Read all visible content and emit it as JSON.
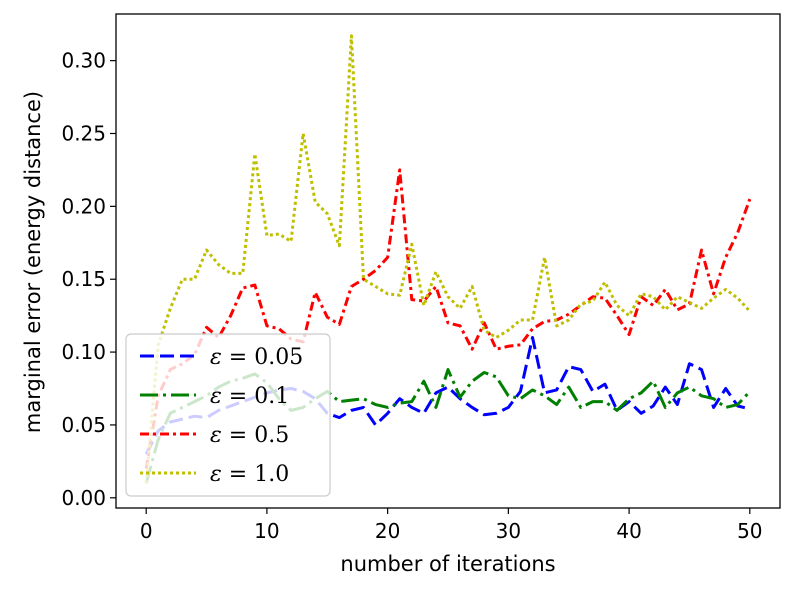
{
  "chart_data": {
    "type": "line",
    "title": "",
    "xlabel": "number of iterations",
    "ylabel": "marginal error (energy distance)",
    "xlim": [
      -2.5,
      52.5
    ],
    "ylim": [
      -0.007,
      0.332
    ],
    "xticks": [
      0,
      10,
      20,
      30,
      40,
      50
    ],
    "yticks": [
      0.0,
      0.05,
      0.1,
      0.15,
      0.2,
      0.25,
      0.3
    ],
    "ytick_labels": [
      "0.00",
      "0.05",
      "0.10",
      "0.15",
      "0.20",
      "0.25",
      "0.30"
    ],
    "legend_position": "lower-left",
    "x": [
      0,
      1,
      2,
      3,
      4,
      5,
      6,
      7,
      8,
      9,
      10,
      11,
      12,
      13,
      14,
      15,
      16,
      17,
      18,
      19,
      20,
      21,
      22,
      23,
      24,
      25,
      26,
      27,
      28,
      29,
      30,
      31,
      32,
      33,
      34,
      35,
      36,
      37,
      38,
      39,
      40,
      41,
      42,
      43,
      44,
      45,
      46,
      47,
      48,
      49,
      50
    ],
    "series": [
      {
        "name": "ε = 0.05",
        "label_prefix": "ε = ",
        "label_value": "0.05",
        "color": "#0000ff",
        "dash": "14,6",
        "values": [
          0.03,
          0.046,
          0.052,
          0.054,
          0.056,
          0.055,
          0.06,
          0.063,
          0.066,
          0.069,
          0.072,
          0.074,
          0.075,
          0.073,
          0.068,
          0.058,
          0.055,
          0.06,
          0.062,
          0.05,
          0.058,
          0.068,
          0.062,
          0.058,
          0.072,
          0.076,
          0.068,
          0.062,
          0.057,
          0.058,
          0.062,
          0.073,
          0.11,
          0.072,
          0.074,
          0.09,
          0.088,
          0.073,
          0.078,
          0.06,
          0.066,
          0.058,
          0.063,
          0.076,
          0.064,
          0.092,
          0.088,
          0.062,
          0.075,
          0.063,
          0.061
        ]
      },
      {
        "name": "ε = 0.1",
        "label_prefix": "ε = ",
        "label_value": "0.1",
        "color": "#008000",
        "dash": "18,5,3,5",
        "values": [
          0.01,
          0.04,
          0.058,
          0.062,
          0.066,
          0.07,
          0.076,
          0.08,
          0.082,
          0.085,
          0.079,
          0.068,
          0.06,
          0.062,
          0.068,
          0.073,
          0.066,
          0.067,
          0.068,
          0.064,
          0.062,
          0.065,
          0.066,
          0.08,
          0.062,
          0.088,
          0.069,
          0.08,
          0.086,
          0.083,
          0.07,
          0.068,
          0.074,
          0.07,
          0.064,
          0.076,
          0.062,
          0.066,
          0.066,
          0.06,
          0.068,
          0.072,
          0.08,
          0.062,
          0.072,
          0.076,
          0.07,
          0.068,
          0.062,
          0.064,
          0.073
        ]
      },
      {
        "name": "ε = 0.5",
        "label_prefix": "ε = ",
        "label_value": "0.5",
        "color": "#ff0000",
        "dash": "9,4,3,4",
        "values": [
          0.02,
          0.07,
          0.088,
          0.092,
          0.098,
          0.117,
          0.11,
          0.125,
          0.144,
          0.146,
          0.118,
          0.116,
          0.109,
          0.107,
          0.141,
          0.124,
          0.119,
          0.145,
          0.15,
          0.156,
          0.165,
          0.225,
          0.136,
          0.135,
          0.145,
          0.12,
          0.118,
          0.102,
          0.12,
          0.102,
          0.104,
          0.105,
          0.116,
          0.121,
          0.122,
          0.126,
          0.132,
          0.138,
          0.137,
          0.125,
          0.112,
          0.138,
          0.132,
          0.143,
          0.129,
          0.133,
          0.17,
          0.14,
          0.165,
          0.182,
          0.205
        ]
      },
      {
        "name": "ε = 1.0",
        "label_prefix": "ε = ",
        "label_value": "1.0",
        "color": "#bfbf00",
        "dash": "3,3",
        "values": [
          0.01,
          0.105,
          0.13,
          0.15,
          0.15,
          0.17,
          0.16,
          0.154,
          0.154,
          0.236,
          0.18,
          0.181,
          0.176,
          0.25,
          0.203,
          0.195,
          0.173,
          0.317,
          0.15,
          0.145,
          0.14,
          0.139,
          0.174,
          0.132,
          0.155,
          0.138,
          0.13,
          0.145,
          0.115,
          0.11,
          0.115,
          0.122,
          0.122,
          0.165,
          0.118,
          0.122,
          0.133,
          0.135,
          0.148,
          0.132,
          0.125,
          0.14,
          0.138,
          0.129,
          0.138,
          0.134,
          0.13,
          0.137,
          0.143,
          0.137,
          0.128
        ]
      }
    ]
  }
}
